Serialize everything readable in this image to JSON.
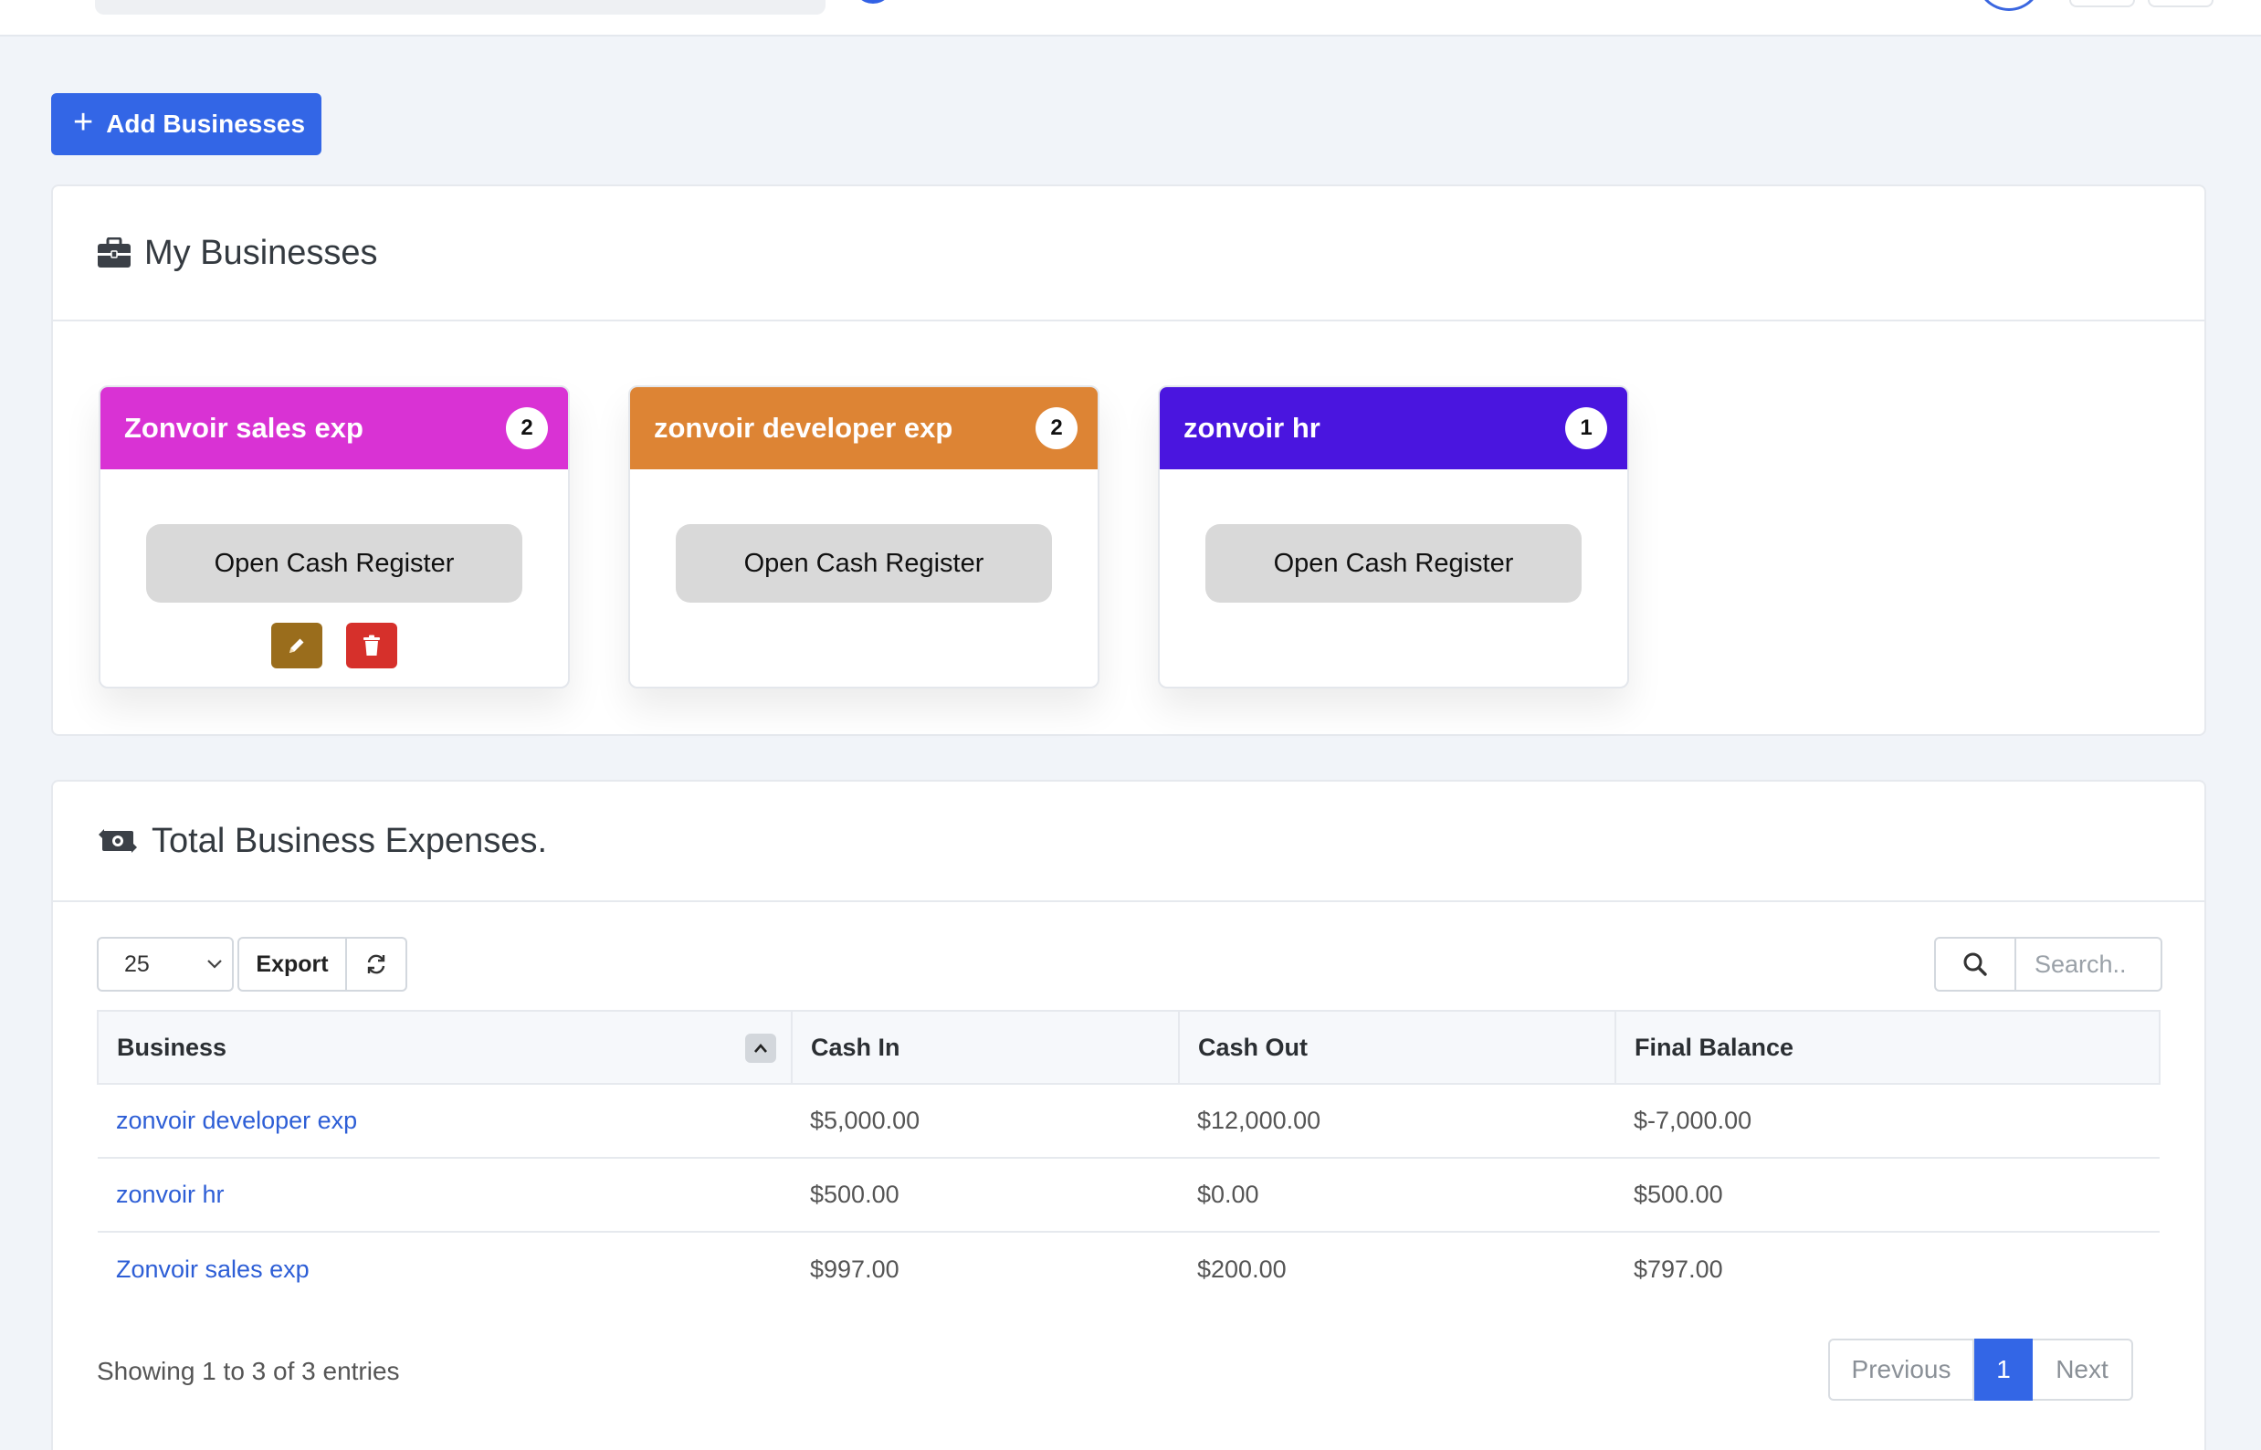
{
  "toolbar_top": {
    "add_businesses_label": "Add Businesses"
  },
  "my_businesses": {
    "title": "My Businesses",
    "cards": [
      {
        "name": "Zonvoir sales exp",
        "count": "2",
        "color": "#d932d4",
        "button": "Open Cash Register",
        "has_actions": true
      },
      {
        "name": "zonvoir developer exp",
        "count": "2",
        "color": "#dd8434",
        "button": "Open Cash Register",
        "has_actions": false
      },
      {
        "name": "zonvoir hr",
        "count": "1",
        "color": "#4a15df",
        "button": "Open Cash Register",
        "has_actions": false
      }
    ],
    "edit_color": "#9a6d1c",
    "delete_color": "#d6302b"
  },
  "expenses": {
    "title": "Total Business Expenses.",
    "page_size": "25",
    "export_label": "Export",
    "search_placeholder": "Search..",
    "columns": [
      "Business",
      "Cash In",
      "Cash Out",
      "Final Balance"
    ],
    "rows": [
      {
        "business": "zonvoir developer exp",
        "cash_in": "$5,000.00",
        "cash_out": "$12,000.00",
        "final_balance": "$-7,000.00"
      },
      {
        "business": "zonvoir hr",
        "cash_in": "$500.00",
        "cash_out": "$0.00",
        "final_balance": "$500.00"
      },
      {
        "business": "Zonvoir sales exp",
        "cash_in": "$997.00",
        "cash_out": "$200.00",
        "final_balance": "$797.00"
      }
    ],
    "info": "Showing 1 to 3 of 3 entries",
    "pagination": {
      "previous": "Previous",
      "current": "1",
      "next": "Next"
    }
  },
  "colors": {
    "primary": "#3366e6",
    "link": "#2d5ed6"
  }
}
